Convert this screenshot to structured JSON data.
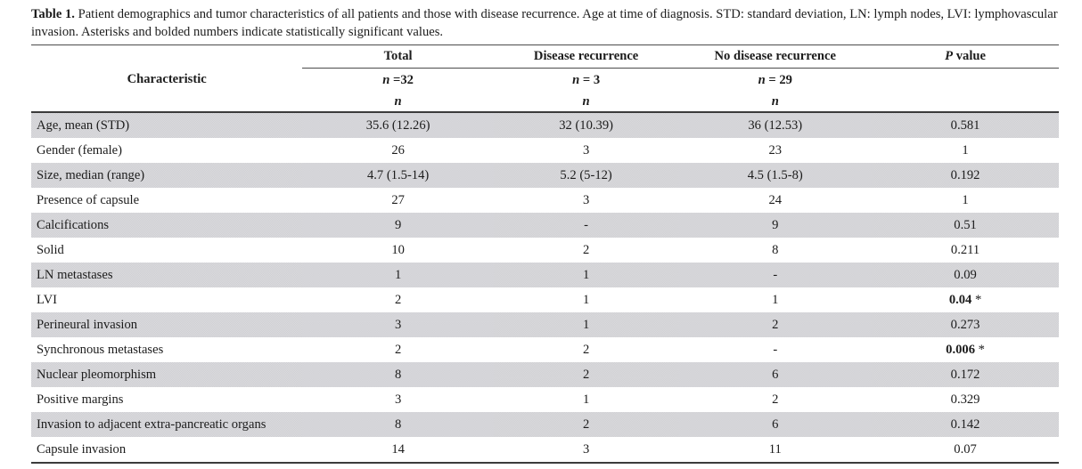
{
  "caption": {
    "label": "Table 1.",
    "text": " Patient demographics and tumor characteristics of all patients and those with disease recurrence. Age at time of diagnosis. STD: standard deviation, LN: lymph nodes, LVI: lymphovascular invasion. Asterisks and bolded numbers indicate statistically significant values."
  },
  "header": {
    "characteristic": "Characteristic",
    "groups": {
      "total": "Total",
      "recurrence": "Disease recurrence",
      "no_recurrence": "No disease recurrence"
    },
    "p_italic": "P",
    "p_rest": " value",
    "n_italic": "n",
    "n_counts": {
      "total": "=32",
      "recurrence": "= 3",
      "no_recurrence": "= 29"
    },
    "n_sub": "n"
  },
  "rows": [
    {
      "label": "Age, mean (STD)",
      "total": "35.6 (12.26)",
      "recurrence": "32 (10.39)",
      "no_recurrence": "36 (12.53)",
      "p": "0.581",
      "significant": false
    },
    {
      "label": "Gender (female)",
      "total": "26",
      "recurrence": "3",
      "no_recurrence": "23",
      "p": "1",
      "significant": false
    },
    {
      "label": "Size, median (range)",
      "total": "4.7 (1.5-14)",
      "recurrence": "5.2 (5-12)",
      "no_recurrence": "4.5 (1.5-8)",
      "p": "0.192",
      "significant": false
    },
    {
      "label": "Presence of capsule",
      "total": "27",
      "recurrence": "3",
      "no_recurrence": "24",
      "p": "1",
      "significant": false
    },
    {
      "label": "Calcifications",
      "total": "9",
      "recurrence": "-",
      "no_recurrence": "9",
      "p": "0.51",
      "significant": false
    },
    {
      "label": "Solid",
      "total": "10",
      "recurrence": "2",
      "no_recurrence": "8",
      "p": "0.211",
      "significant": false
    },
    {
      "label": "LN metastases",
      "total": "1",
      "recurrence": "1",
      "no_recurrence": "-",
      "p": "0.09",
      "significant": false
    },
    {
      "label": "LVI",
      "total": "2",
      "recurrence": "1",
      "no_recurrence": "1",
      "p": "0.04",
      "p_star": " *",
      "significant": true
    },
    {
      "label": "Perineural invasion",
      "total": "3",
      "recurrence": "1",
      "no_recurrence": "2",
      "p": "0.273",
      "significant": false
    },
    {
      "label": "Synchronous metastases",
      "total": "2",
      "recurrence": "2",
      "no_recurrence": "-",
      "p": "0.006",
      "p_star": " *",
      "significant": true
    },
    {
      "label": "Nuclear pleomorphism",
      "total": "8",
      "recurrence": "2",
      "no_recurrence": "6",
      "p": "0.172",
      "significant": false
    },
    {
      "label": "Positive margins",
      "total": "3",
      "recurrence": "1",
      "no_recurrence": "2",
      "p": "0.329",
      "significant": false
    },
    {
      "label": "Invasion to adjacent extra-pancreatic organs",
      "total": "8",
      "recurrence": "2",
      "no_recurrence": "6",
      "p": "0.142",
      "significant": false
    },
    {
      "label": "Capsule invasion",
      "total": "14",
      "recurrence": "3",
      "no_recurrence": "11",
      "p": "0.07",
      "significant": false
    }
  ]
}
